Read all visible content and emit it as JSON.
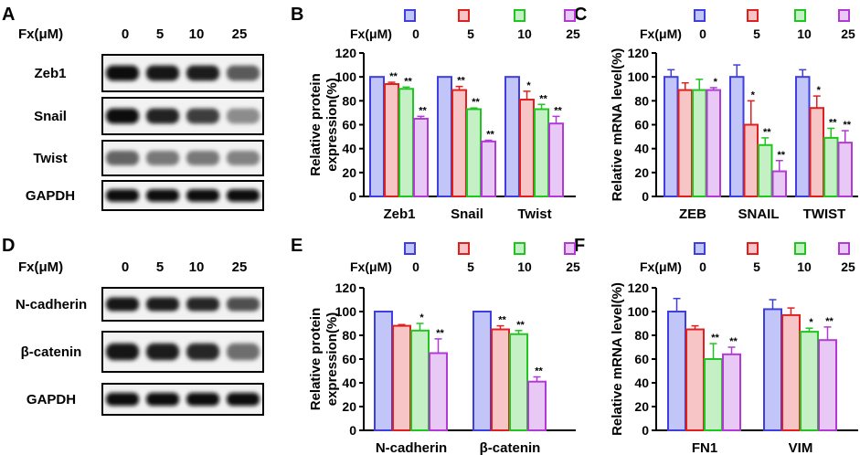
{
  "figure": {
    "panel_letters": [
      "A",
      "B",
      "C",
      "D",
      "E",
      "F"
    ],
    "legend_prefix": "Fx(μM)",
    "legend_doses": [
      "0",
      "5",
      "10",
      "25"
    ],
    "dose_colors": {
      "stroke": [
        "#3f3fe0",
        "#e02020",
        "#22c422",
        "#b13ad6"
      ],
      "fill": [
        "#c2c5f7",
        "#f7c5c5",
        "#c5f0c5",
        "#e8c9f5"
      ]
    }
  },
  "blots": [
    {
      "panel": "A",
      "header_prefix": "Fx(μM)",
      "doses": [
        "0",
        "5",
        "10",
        "25"
      ],
      "rows": [
        {
          "label": "Zeb1",
          "intensity": [
            1.0,
            0.95,
            0.9,
            0.6
          ]
        },
        {
          "label": "Snail",
          "intensity": [
            1.0,
            0.88,
            0.75,
            0.35
          ]
        },
        {
          "label": "Twist",
          "intensity": [
            0.55,
            0.45,
            0.45,
            0.4
          ]
        },
        {
          "label": "GAPDH",
          "intensity": [
            1.0,
            1.0,
            1.0,
            1.0
          ]
        }
      ]
    },
    {
      "panel": "D",
      "header_prefix": "Fx(μM)",
      "doses": [
        "0",
        "5",
        "10",
        "25"
      ],
      "rows": [
        {
          "label": "N-cadherin",
          "intensity": [
            0.95,
            0.9,
            0.85,
            0.65
          ]
        },
        {
          "label": "β-catenin",
          "intensity": [
            0.95,
            0.9,
            0.85,
            0.5
          ]
        },
        {
          "label": "GAPDH",
          "intensity": [
            1.0,
            1.0,
            1.0,
            1.0
          ]
        }
      ]
    }
  ],
  "chart_data": [
    {
      "panel": "B",
      "type": "bar",
      "ylabel": "Relative protein expression(%)",
      "ylabel_lines": [
        "Relative protein",
        "expression(%)"
      ],
      "ylim": [
        0,
        120
      ],
      "yticks": [
        0,
        20,
        40,
        60,
        80,
        100,
        120
      ],
      "categories": [
        "Zeb1",
        "Snail",
        "Twist"
      ],
      "legend_prefix": "Fx(μM)",
      "series": [
        {
          "name": "0",
          "values": [
            100,
            100,
            100
          ],
          "errors": [
            0,
            0,
            0
          ],
          "sig": [
            "",
            "",
            ""
          ]
        },
        {
          "name": "5",
          "values": [
            94,
            89,
            81
          ],
          "errors": [
            1.5,
            3,
            7
          ],
          "sig": [
            "**",
            "**",
            "*"
          ]
        },
        {
          "name": "10",
          "values": [
            90,
            73,
            73
          ],
          "errors": [
            1.5,
            1,
            4
          ],
          "sig": [
            "**",
            "**",
            "**"
          ]
        },
        {
          "name": "25",
          "values": [
            65,
            46,
            61
          ],
          "errors": [
            2,
            1,
            6
          ],
          "sig": [
            "**",
            "**",
            "**"
          ]
        }
      ]
    },
    {
      "panel": "C",
      "type": "bar",
      "ylabel": "Relative mRNA level(%)",
      "ylim": [
        0,
        120
      ],
      "yticks": [
        0,
        20,
        40,
        60,
        80,
        100,
        120
      ],
      "categories": [
        "ZEB",
        "SNAIL",
        "TWIST"
      ],
      "legend_prefix": "Fx(μM)",
      "series": [
        {
          "name": "0",
          "values": [
            100,
            100,
            100
          ],
          "errors": [
            6,
            10,
            6
          ],
          "sig": [
            "",
            "",
            ""
          ]
        },
        {
          "name": "5",
          "values": [
            89,
            60,
            74
          ],
          "errors": [
            6,
            20,
            10
          ],
          "sig": [
            "",
            "*",
            "*"
          ]
        },
        {
          "name": "10",
          "values": [
            89,
            43,
            49
          ],
          "errors": [
            9,
            6,
            8
          ],
          "sig": [
            "",
            "**",
            "**"
          ]
        },
        {
          "name": "25",
          "values": [
            89,
            21,
            45
          ],
          "errors": [
            2,
            9,
            10
          ],
          "sig": [
            "*",
            "**",
            "**"
          ]
        }
      ]
    },
    {
      "panel": "E",
      "type": "bar",
      "ylabel": "Relative protein expression(%)",
      "ylabel_lines": [
        "Relative protein",
        "expression(%)"
      ],
      "ylim": [
        0,
        120
      ],
      "yticks": [
        0,
        20,
        40,
        60,
        80,
        100,
        120
      ],
      "categories": [
        "N-cadherin",
        "β-catenin"
      ],
      "legend_prefix": "Fx(μM)",
      "series": [
        {
          "name": "0",
          "values": [
            100,
            100
          ],
          "errors": [
            0,
            0
          ],
          "sig": [
            "",
            ""
          ]
        },
        {
          "name": "5",
          "values": [
            88,
            85
          ],
          "errors": [
            1,
            3
          ],
          "sig": [
            "",
            "**"
          ]
        },
        {
          "name": "10",
          "values": [
            84,
            81
          ],
          "errors": [
            6,
            3
          ],
          "sig": [
            "*",
            "**"
          ]
        },
        {
          "name": "25",
          "values": [
            65,
            41
          ],
          "errors": [
            12,
            4
          ],
          "sig": [
            "**",
            "**"
          ]
        }
      ]
    },
    {
      "panel": "F",
      "type": "bar",
      "ylabel": "Relative mRNA level(%)",
      "ylim": [
        0,
        120
      ],
      "yticks": [
        0,
        20,
        40,
        60,
        80,
        100,
        120
      ],
      "categories": [
        "FN1",
        "VIM"
      ],
      "legend_prefix": "Fx(μM)",
      "series": [
        {
          "name": "0",
          "values": [
            100,
            102
          ],
          "errors": [
            11,
            8
          ],
          "sig": [
            "",
            ""
          ]
        },
        {
          "name": "5",
          "values": [
            85,
            97
          ],
          "errors": [
            3,
            6
          ],
          "sig": [
            "",
            ""
          ]
        },
        {
          "name": "10",
          "values": [
            60,
            83
          ],
          "errors": [
            13,
            3
          ],
          "sig": [
            "**",
            "*"
          ]
        },
        {
          "name": "25",
          "values": [
            64,
            76
          ],
          "errors": [
            6,
            11
          ],
          "sig": [
            "**",
            "**"
          ]
        }
      ]
    }
  ]
}
